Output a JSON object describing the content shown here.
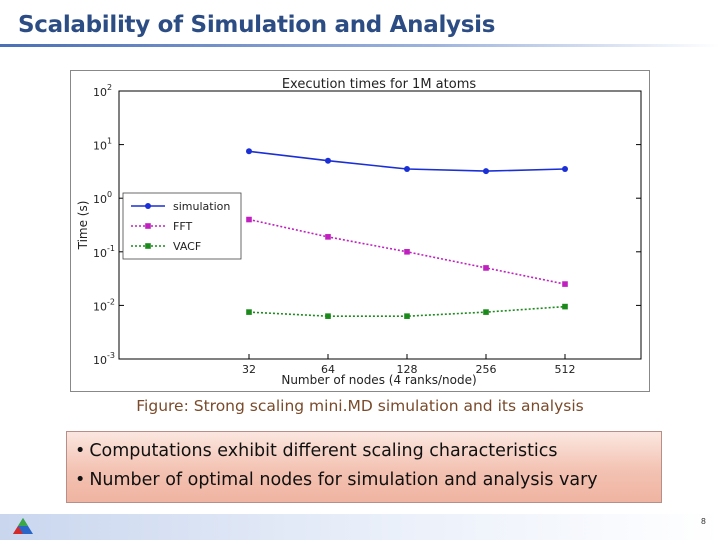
{
  "slide": {
    "title": "Scalability of Simulation and Analysis",
    "caption": "Figure: Strong scaling mini.MD simulation and its analysis",
    "bullets": [
      "Computations exhibit different scaling characteristics",
      "Number of optimal nodes for simulation and analysis vary"
    ],
    "page_number": "8"
  },
  "colors": {
    "title": "#2c4c84",
    "simulation": "#1a2fd6",
    "fft": "#c020c0",
    "vacf": "#1a8a1a"
  },
  "chart_data": {
    "type": "line",
    "title": "Execution times for 1M atoms",
    "xlabel": "Number of nodes (4 ranks/node)",
    "ylabel": "Time (s)",
    "yscale": "log",
    "ylim": [
      0.001,
      100
    ],
    "ytick_exponents": [
      "2",
      "1",
      "0",
      "-1",
      "-2",
      "-3"
    ],
    "categories": [
      "32",
      "64",
      "128",
      "256",
      "512"
    ],
    "legend_position": "upper-left",
    "grid": false,
    "series": [
      {
        "name": "simulation",
        "marker": "circle",
        "linestyle": "solid",
        "values": [
          7.5,
          5.0,
          3.5,
          3.2,
          3.5
        ]
      },
      {
        "name": "FFT",
        "marker": "square",
        "linestyle": "dotted",
        "values": [
          0.4,
          0.19,
          0.1,
          0.05,
          0.025
        ]
      },
      {
        "name": "VACF",
        "marker": "square",
        "linestyle": "dotted",
        "values": [
          0.0075,
          0.0063,
          0.0063,
          0.0075,
          0.0095
        ]
      }
    ]
  }
}
